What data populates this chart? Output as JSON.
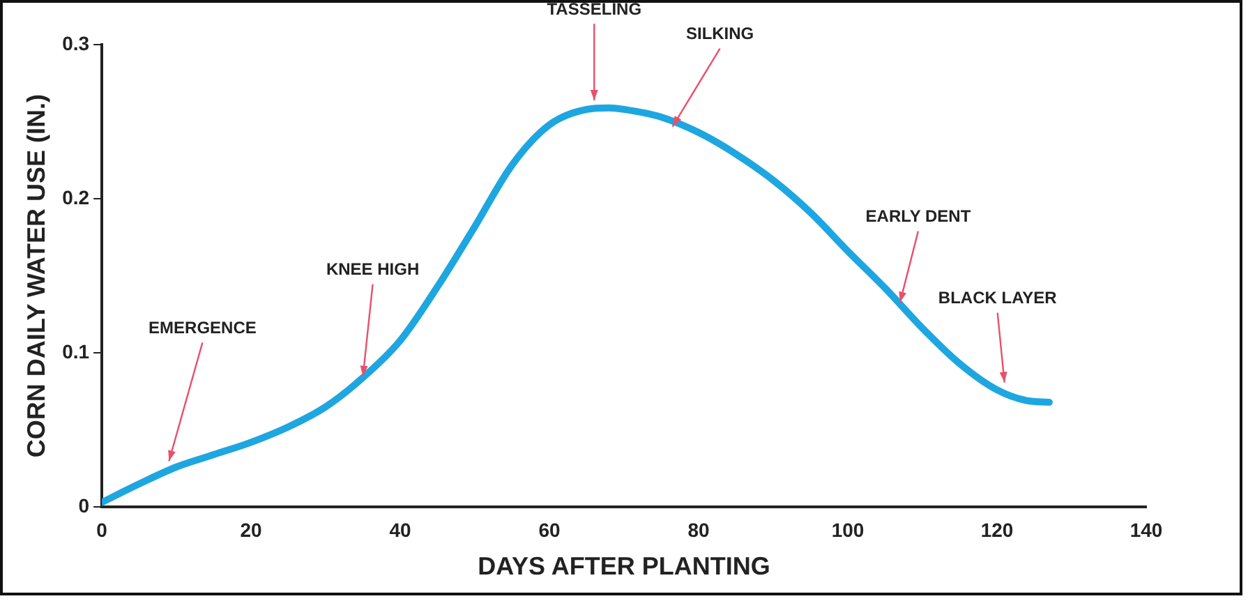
{
  "chart_data": {
    "type": "line",
    "xlabel": "DAYS AFTER PLANTING",
    "ylabel": "CORN DAILY WATER USE (IN.)",
    "xlim": [
      0,
      140
    ],
    "xticks": [
      0,
      20,
      40,
      60,
      80,
      100,
      120,
      140
    ],
    "ylim": [
      0,
      0.3
    ],
    "yticks": [
      0,
      0.1,
      0.2,
      0.3
    ],
    "grid": false,
    "legend": false,
    "marker": "none",
    "line_style": "solid",
    "series": [
      {
        "color": "#1ea6e1",
        "x": [
          0,
          5,
          10,
          15,
          20,
          25,
          30,
          35,
          40,
          45,
          50,
          55,
          60,
          65,
          68,
          70,
          75,
          80,
          85,
          90,
          95,
          100,
          105,
          110,
          115,
          120,
          124,
          127
        ],
        "values": [
          0.003,
          0.015,
          0.026,
          0.034,
          0.042,
          0.052,
          0.065,
          0.084,
          0.108,
          0.143,
          0.182,
          0.222,
          0.248,
          0.258,
          0.259,
          0.258,
          0.253,
          0.243,
          0.229,
          0.212,
          0.191,
          0.166,
          0.142,
          0.116,
          0.093,
          0.076,
          0.069,
          0.068
        ]
      }
    ],
    "annotations": [
      {
        "text": "EMERGENCE",
        "x": 9,
        "y": 0.028
      },
      {
        "text": "KNEE HIGH",
        "x": 35,
        "y": 0.083
      },
      {
        "text": "TASSELING",
        "x": 66,
        "y": 0.262
      },
      {
        "text": "SILKING",
        "x": 76.5,
        "y": 0.245
      },
      {
        "text": "EARLY DENT",
        "x": 107,
        "y": 0.131
      },
      {
        "text": "BLACK LAYER",
        "x": 121,
        "y": 0.079
      }
    ]
  }
}
